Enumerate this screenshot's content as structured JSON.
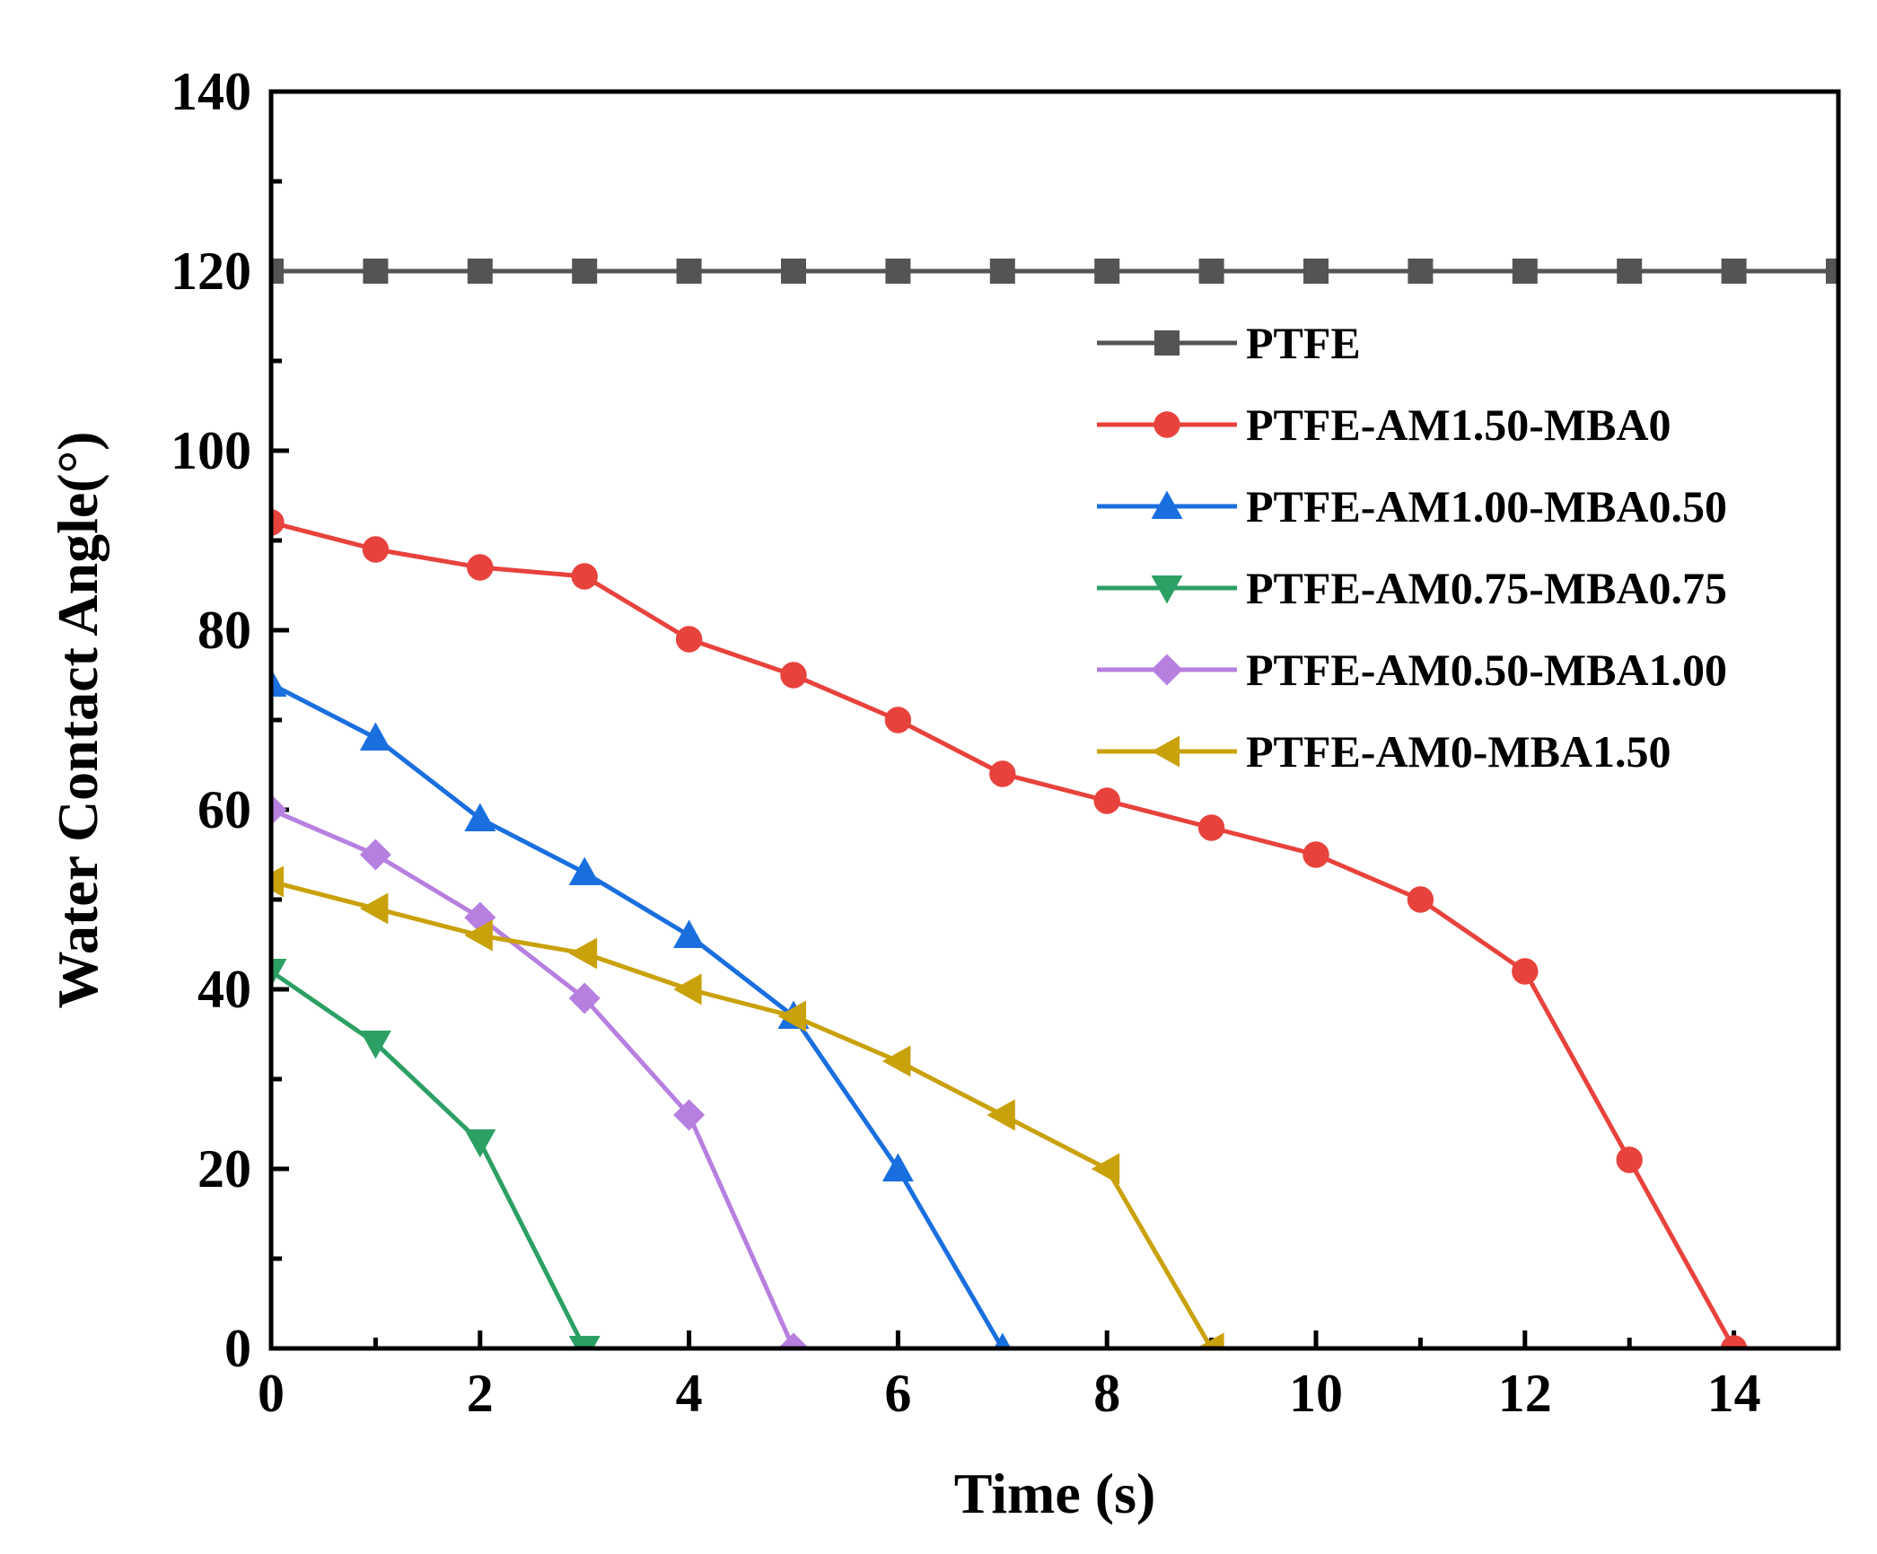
{
  "chart_data": {
    "type": "line",
    "xlabel": "Time (s)",
    "ylabel": "Water Contact Angle(°)",
    "xlim": [
      0,
      15
    ],
    "ylim": [
      0,
      140
    ],
    "xticks": [
      0,
      2,
      4,
      6,
      8,
      10,
      12,
      14
    ],
    "yticks": [
      0,
      20,
      40,
      60,
      80,
      100,
      120,
      140
    ],
    "x_minor_step": 1,
    "y_minor_step": 10,
    "grid": false,
    "legend_position": "right",
    "series": [
      {
        "name": "PTFE",
        "color": "#545454",
        "marker": "square",
        "x": [
          0,
          1,
          2,
          3,
          4,
          5,
          6,
          7,
          8,
          9,
          10,
          11,
          12,
          13,
          14,
          15
        ],
        "y": [
          120,
          120,
          120,
          120,
          120,
          120,
          120,
          120,
          120,
          120,
          120,
          120,
          120,
          120,
          120,
          120
        ]
      },
      {
        "name": "PTFE-AM1.50-MBA0",
        "color": "#e8423c",
        "marker": "circle",
        "x": [
          0,
          1,
          2,
          3,
          4,
          5,
          6,
          7,
          8,
          9,
          10,
          11,
          12,
          13,
          14
        ],
        "y": [
          92,
          89,
          87,
          86,
          79,
          75,
          70,
          64,
          61,
          58,
          55,
          50,
          42,
          21,
          0
        ]
      },
      {
        "name": "PTFE-AM1.00-MBA0.50",
        "color": "#1a6fdf",
        "marker": "triangle-up",
        "x": [
          0,
          1,
          2,
          3,
          4,
          5,
          6,
          7
        ],
        "y": [
          74,
          68,
          59,
          53,
          46,
          37,
          20,
          0
        ]
      },
      {
        "name": "PTFE-AM0.75-MBA0.75",
        "color": "#2ca064",
        "marker": "triangle-down",
        "x": [
          0,
          1,
          2,
          3
        ],
        "y": [
          42,
          34,
          23,
          0
        ]
      },
      {
        "name": "PTFE-AM0.50-MBA1.00",
        "color": "#b77fe0",
        "marker": "diamond",
        "x": [
          0,
          1,
          2,
          3,
          4,
          5
        ],
        "y": [
          60,
          55,
          48,
          39,
          26,
          0
        ]
      },
      {
        "name": "PTFE-AM0-MBA1.50",
        "color": "#c9a10a",
        "marker": "triangle-left",
        "x": [
          0,
          1,
          2,
          3,
          4,
          5,
          6,
          7,
          8,
          9
        ],
        "y": [
          52,
          49,
          46,
          44,
          40,
          37,
          32,
          26,
          20,
          0
        ]
      }
    ]
  }
}
